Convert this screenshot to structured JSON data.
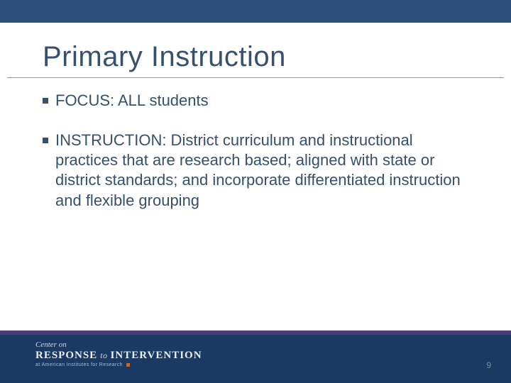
{
  "colors": {
    "top_bar": "#2a4d7a",
    "title_text": "#36506e",
    "body_text": "#35506d",
    "footer_stripe": "#4b3f7a",
    "footer_bg": "#1a3a63",
    "page_num_text": "#7d8a99",
    "background": "#ffffff"
  },
  "title": "Primary Instruction",
  "bullets": [
    "FOCUS: ALL students",
    "INSTRUCTION: District curriculum and instructional practices that are research based; aligned with state or district standards;  and incorporate differentiated instruction and flexible grouping"
  ],
  "footer": {
    "line1": "Center on",
    "response": "RESPONSE",
    "to": "to",
    "intervention": "INTERVENTION",
    "subtitle": "at American Institutes for Research"
  },
  "page_number": "9"
}
